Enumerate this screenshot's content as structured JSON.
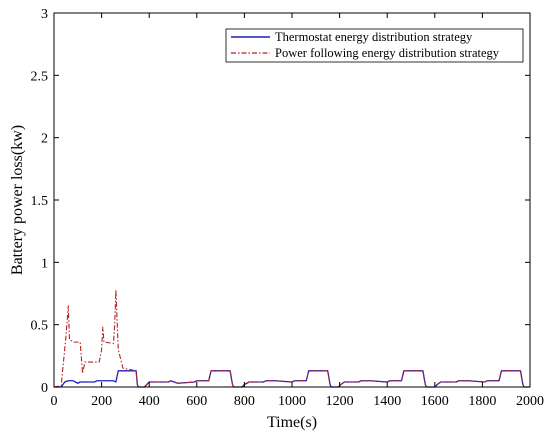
{
  "chart_data": {
    "type": "line",
    "title": "",
    "xlabel": "Time(s)",
    "ylabel": "Battery power loss(kw)",
    "xlim": [
      0,
      2000
    ],
    "ylim": [
      0,
      3
    ],
    "xticks": [
      "0",
      "200",
      "400",
      "600",
      "800",
      "1000",
      "1200",
      "1400",
      "1600",
      "1800",
      "2000"
    ],
    "yticks": [
      "0",
      "0.5",
      "1",
      "1.5",
      "2",
      "2.5",
      "3"
    ],
    "grid": false,
    "legend_position": "top-right",
    "series": [
      {
        "name": "Thermostat energy distribution strategy",
        "color": "#1f1fbf",
        "style": "solid",
        "x": [
          0,
          30,
          45,
          60,
          80,
          100,
          110,
          170,
          180,
          250,
          260,
          270,
          345,
          350,
          355,
          380,
          390,
          400,
          480,
          490,
          520,
          590,
          600,
          650,
          660,
          740,
          750,
          755,
          790,
          800,
          820,
          880,
          890,
          930,
          1000,
          1010,
          1060,
          1070,
          1150,
          1160,
          1165,
          1195,
          1205,
          1220,
          1280,
          1290,
          1330,
          1400,
          1410,
          1460,
          1470,
          1550,
          1560,
          1565,
          1600,
          1610,
          1625,
          1690,
          1700,
          1740,
          1810,
          1820,
          1870,
          1880,
          1960,
          1970,
          1975,
          2000
        ],
        "y": [
          0,
          0,
          0.04,
          0.05,
          0.05,
          0.03,
          0.04,
          0.04,
          0.05,
          0.05,
          0.04,
          0.13,
          0.13,
          0.02,
          0,
          0,
          0.02,
          0.04,
          0.04,
          0.05,
          0.03,
          0.04,
          0.05,
          0.05,
          0.13,
          0.13,
          0.02,
          0,
          0,
          0.02,
          0.04,
          0.04,
          0.05,
          0.05,
          0.04,
          0.05,
          0.05,
          0.13,
          0.13,
          0.02,
          0,
          0,
          0.02,
          0.04,
          0.04,
          0.05,
          0.05,
          0.04,
          0.05,
          0.05,
          0.13,
          0.13,
          0.02,
          0,
          0,
          0.02,
          0.04,
          0.04,
          0.05,
          0.05,
          0.04,
          0.05,
          0.05,
          0.13,
          0.13,
          0.02,
          0,
          0
        ]
      },
      {
        "name": "Power following energy distribution strategy",
        "color": "#b22222",
        "style": "dashdot",
        "x": [
          0,
          30,
          50,
          60,
          65,
          75,
          80,
          110,
          120,
          130,
          190,
          200,
          205,
          210,
          250,
          255,
          260,
          270,
          290,
          345,
          350,
          355,
          380,
          390,
          400,
          480,
          490,
          520,
          590,
          600,
          650,
          660,
          740,
          750,
          755,
          790,
          800,
          820,
          880,
          890,
          930,
          1000,
          1010,
          1060,
          1070,
          1150,
          1160,
          1165,
          1195,
          1205,
          1220,
          1280,
          1290,
          1330,
          1400,
          1410,
          1460,
          1470,
          1550,
          1560,
          1565,
          1600,
          1610,
          1625,
          1690,
          1700,
          1740,
          1810,
          1820,
          1870,
          1880,
          1960,
          1970,
          1975,
          2000
        ],
        "y": [
          0,
          0.01,
          0.4,
          0.65,
          0.38,
          0.37,
          0.36,
          0.36,
          0.11,
          0.2,
          0.2,
          0.3,
          0.48,
          0.36,
          0.35,
          0.5,
          0.78,
          0.3,
          0.15,
          0.13,
          0.02,
          0,
          0,
          0.02,
          0.04,
          0.04,
          0.05,
          0.03,
          0.04,
          0.05,
          0.05,
          0.13,
          0.13,
          0.02,
          0,
          0,
          0.02,
          0.04,
          0.04,
          0.05,
          0.05,
          0.04,
          0.05,
          0.05,
          0.13,
          0.13,
          0.02,
          0,
          0,
          0.02,
          0.04,
          0.04,
          0.05,
          0.05,
          0.04,
          0.05,
          0.05,
          0.13,
          0.13,
          0.02,
          0,
          0,
          0.02,
          0.04,
          0.04,
          0.05,
          0.05,
          0.04,
          0.05,
          0.05,
          0.13,
          0.13,
          0.02,
          0,
          0
        ]
      }
    ]
  }
}
